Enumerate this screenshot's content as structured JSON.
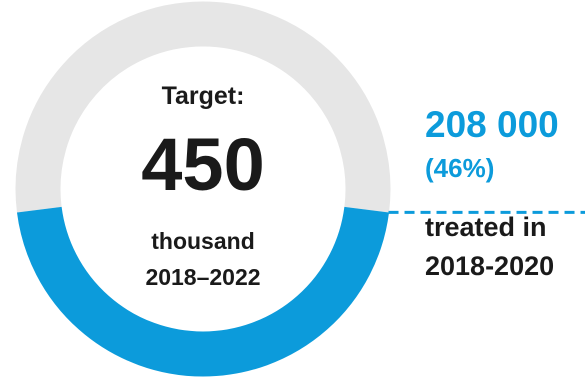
{
  "chart_data": {
    "type": "pie",
    "variant": "donut",
    "target": {
      "label": "Target:",
      "value": "450",
      "unit": "thousand",
      "period": "2018–2022",
      "numeric_value": 450000
    },
    "achieved": {
      "value": "208 000",
      "percent": "(46%)",
      "caption_line1": "treated in",
      "caption_line2": "2018-2020",
      "numeric_value": 208000,
      "fraction": 0.46
    },
    "colors": {
      "achieved": "#0C9BDB",
      "remaining": "#E6E6E6",
      "text": "#1A1A1A"
    }
  }
}
